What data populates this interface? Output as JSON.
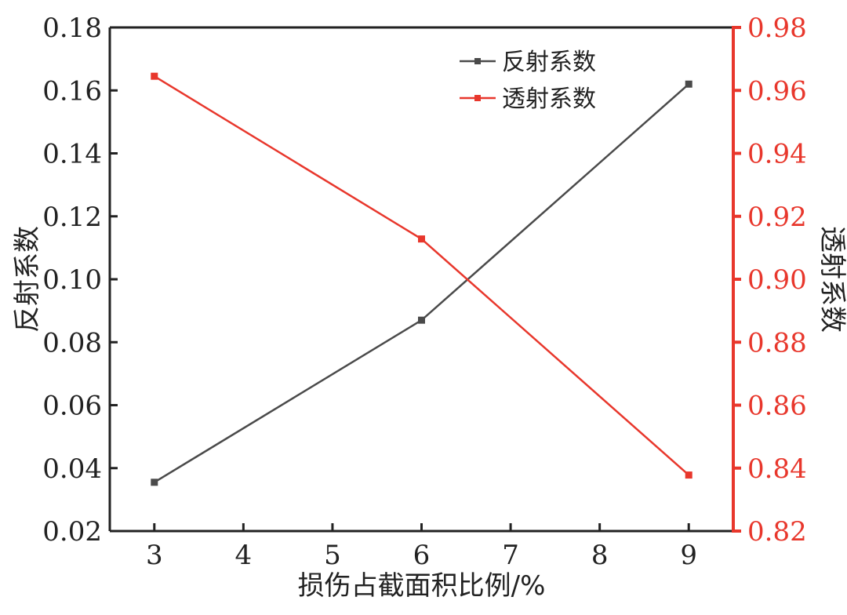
{
  "chart_data": {
    "type": "line",
    "x": [
      3,
      6,
      9
    ],
    "xlabel": "损伤占截面积比例/%",
    "xlim": [
      2.5,
      9.5
    ],
    "xticks": [
      3,
      4,
      5,
      6,
      7,
      8,
      9
    ],
    "y_left": {
      "label": "反射系数",
      "lim": [
        0.02,
        0.18
      ],
      "ticks": [
        "0.02",
        "0.04",
        "0.06",
        "0.08",
        "0.10",
        "0.12",
        "0.14",
        "0.16",
        "0.18"
      ],
      "color": "#222222"
    },
    "y_right": {
      "label": "透射系数",
      "lim": [
        0.82,
        0.98
      ],
      "ticks": [
        "0.82",
        "0.84",
        "0.86",
        "0.88",
        "0.90",
        "0.92",
        "0.94",
        "0.96",
        "0.98"
      ],
      "color": "#e8372c"
    },
    "series": [
      {
        "name": "反射系数",
        "axis": "left",
        "color": "#4a4a4a",
        "values": [
          0.0355,
          0.087,
          0.162
        ]
      },
      {
        "name": "透射系数",
        "axis": "right",
        "color": "#e8372c",
        "values": [
          0.9645,
          0.9128,
          0.8378
        ]
      }
    ],
    "legend_position": "top-right",
    "grid": false
  }
}
